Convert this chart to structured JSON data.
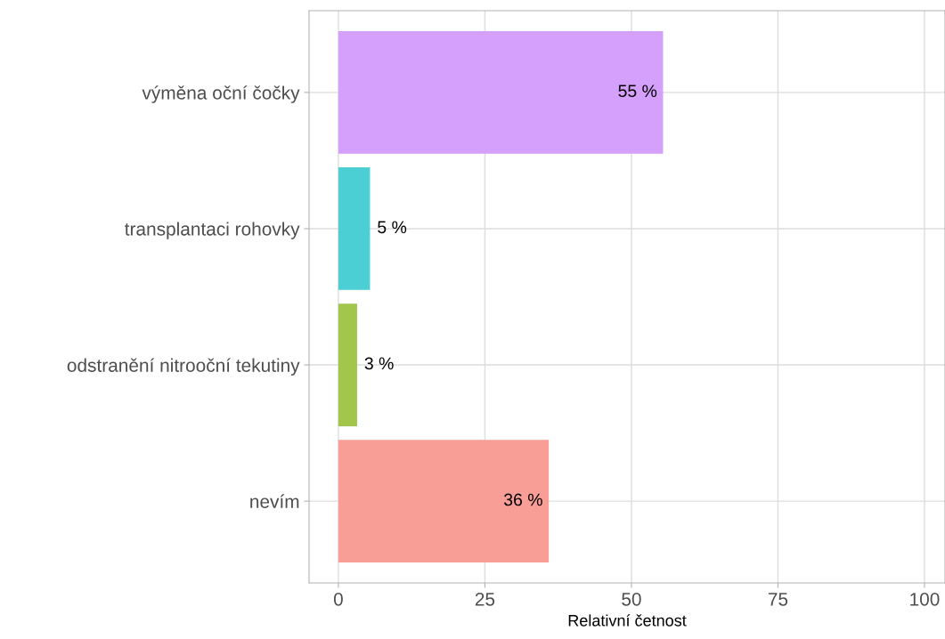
{
  "chart_data": {
    "type": "bar",
    "orientation": "horizontal",
    "xlabel": "Relativní četnost",
    "categories": [
      "výměna oční čočky",
      "transplantaci rohovky",
      "odstranění nitrooční tekutiny",
      "nevím"
    ],
    "values": [
      55.4,
      5.4,
      3.2,
      35.9
    ],
    "colors": [
      "#d59ffc",
      "#4ccfd4",
      "#a2c54c",
      "#f89e96"
    ],
    "value_labels": [
      "55 %",
      "5 %",
      "3 %",
      "36 %"
    ],
    "xlim": [
      -5,
      103.5
    ],
    "xticks": [
      0,
      25,
      50,
      75,
      100
    ],
    "grid": true,
    "legend": false
  }
}
